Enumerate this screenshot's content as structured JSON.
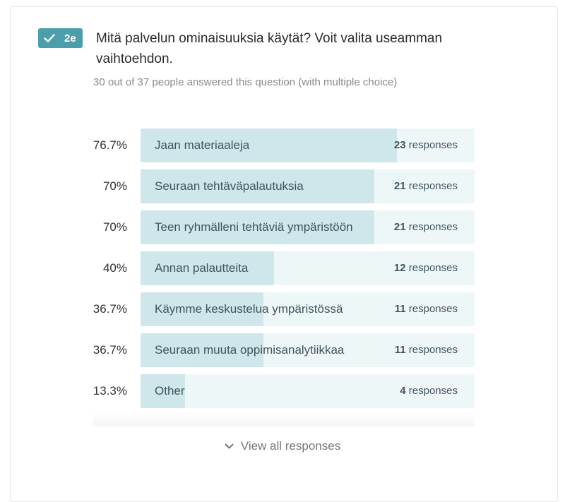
{
  "question": {
    "badge_label": "2e",
    "title": "Mitä palvelun ominaisuuksia käytät? Voit valita useamman vaihtoehdon.",
    "subtitle": "30 out of 37 people answered this question (with multiple choice)"
  },
  "chart_data": {
    "type": "bar",
    "orientation": "horizontal",
    "categories": [
      "Jaan materiaaleja",
      "Seuraan tehtäväpalautuksia",
      "Teen ryhmälleni tehtäviä ympäristöön",
      "Annan palautteita",
      "Käymme keskustelua ympäristössä",
      "Seuraan muuta oppimisanalytiikkaa",
      "Other"
    ],
    "percent_labels": [
      "76.7%",
      "70%",
      "70%",
      "40%",
      "36.7%",
      "36.7%",
      "13.3%"
    ],
    "counts": [
      "23",
      "21",
      "21",
      "12",
      "11",
      "11",
      "4"
    ],
    "count_suffix": "responses",
    "values": [
      76.7,
      70,
      70,
      40,
      36.7,
      36.7,
      13.3
    ],
    "xlim": [
      0,
      100
    ],
    "colors": {
      "fill": "#cfe6ea",
      "track": "#eef7f8",
      "badge": "#4a9fab"
    }
  },
  "footer": {
    "view_all_label": "View all responses"
  }
}
